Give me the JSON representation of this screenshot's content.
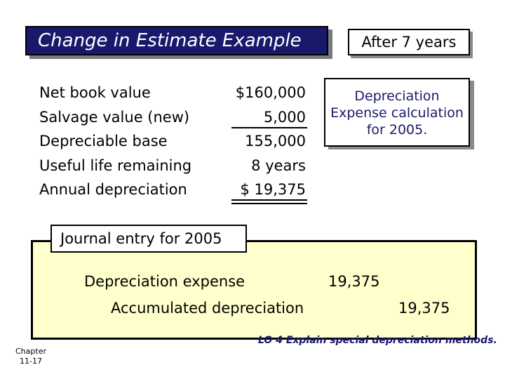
{
  "title": "Change in Estimate Example",
  "after_label": "After 7 years",
  "rows": [
    {
      "label": "Net book value",
      "value": "$160,000"
    },
    {
      "label": "Salvage value (new)",
      "value": "5,000"
    },
    {
      "label": "Depreciable base",
      "value": "155,000"
    },
    {
      "label": "Useful life remaining",
      "value": "8 years"
    },
    {
      "label": "Annual depreciation",
      "value": "$ 19,375"
    }
  ],
  "callout": {
    "line1": "Depreciation",
    "line2": "Expense calculation",
    "line3": "for 2005."
  },
  "journal": {
    "label": "Journal entry for 2005",
    "debit_account": "Depreciation expense",
    "debit_amount": "19,375",
    "credit_account": "Accumulated depreciation",
    "credit_amount": "19,375"
  },
  "footer": {
    "chapter_line1": "Chapter",
    "chapter_line2": "11-17",
    "learning_objective": "LO 4 Explain special depreciation methods."
  }
}
